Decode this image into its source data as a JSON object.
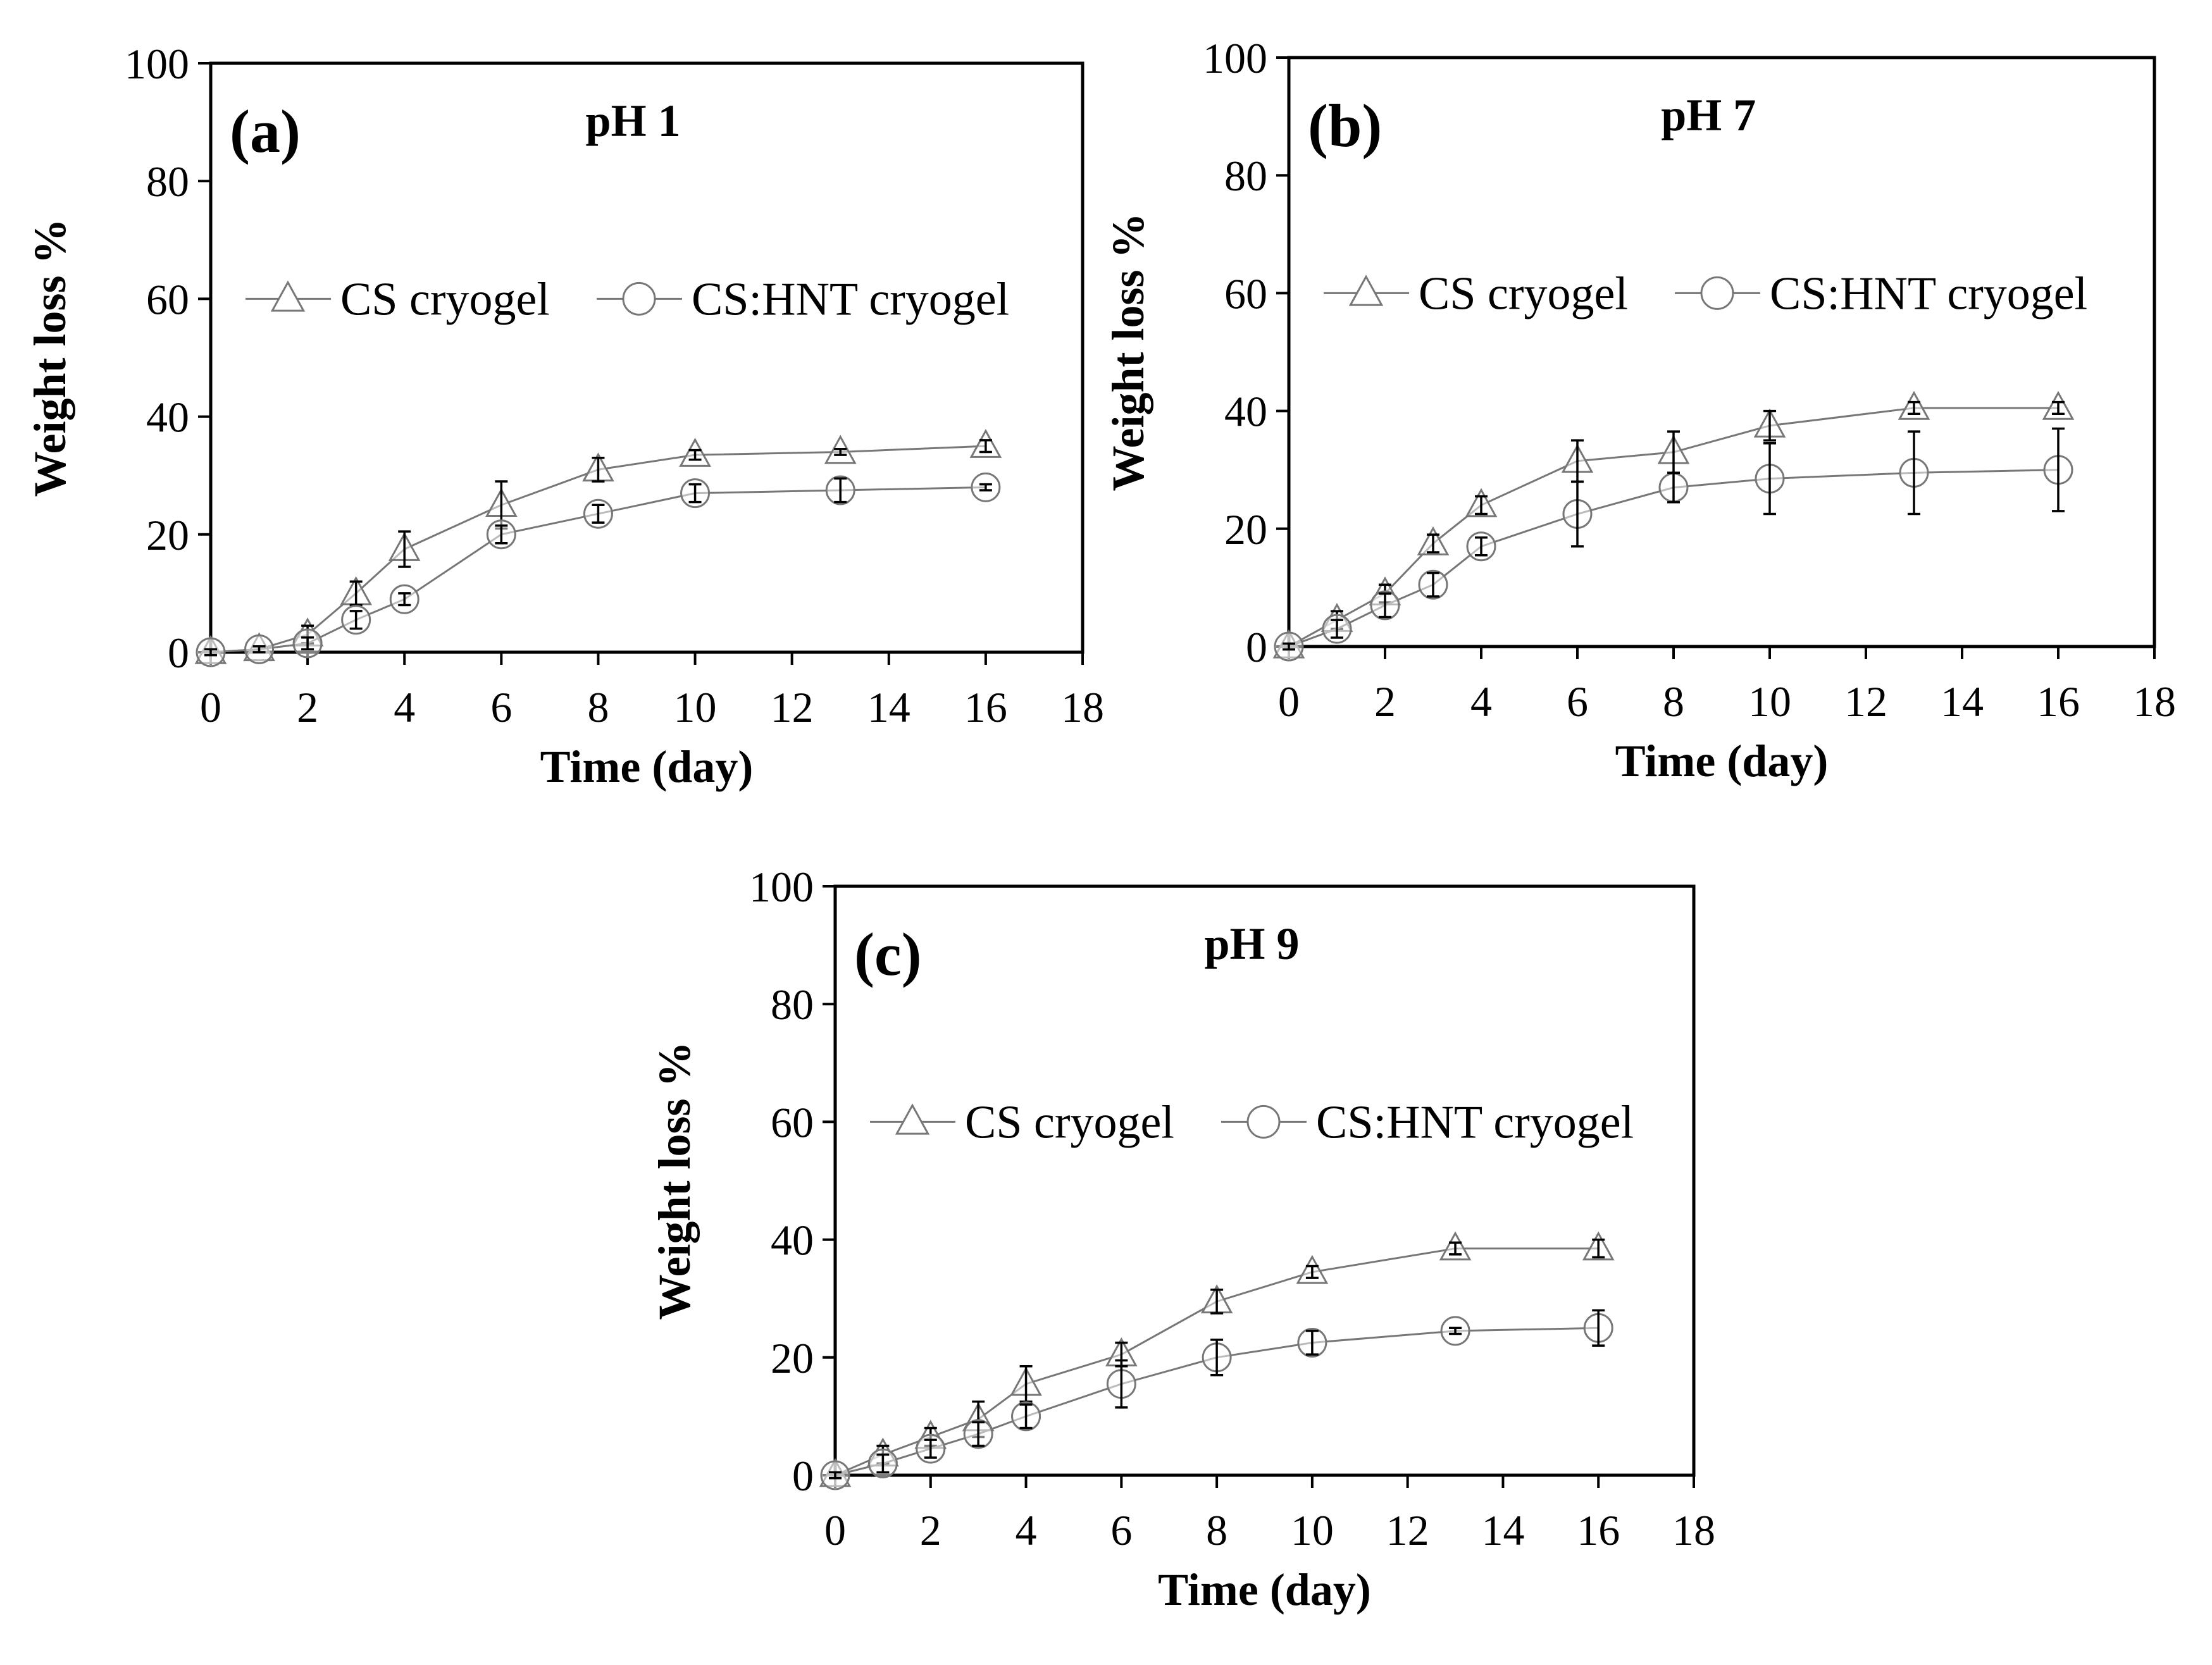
{
  "chart_data": [
    {
      "type": "line",
      "panel_label": "(a)",
      "title": "pH 1",
      "xlabel": "Time (day)",
      "ylabel": "Weight loss %",
      "xlim": [
        0,
        18
      ],
      "ylim": [
        0,
        100
      ],
      "xticks": [
        "0",
        "2",
        "4",
        "6",
        "8",
        "10",
        "12",
        "14",
        "16",
        "18"
      ],
      "yticks": [
        "0",
        "20",
        "40",
        "60",
        "80",
        "100"
      ],
      "grid": false,
      "legend_position": "upper-middle",
      "series": [
        {
          "name": "CS cryogel",
          "marker": "triangle",
          "x": [
            0,
            1,
            2,
            3,
            4,
            6,
            8,
            10,
            13,
            16
          ],
          "y": [
            0,
            0.5,
            3,
            10,
            17.5,
            25,
            31,
            33.5,
            34,
            35
          ],
          "err": [
            0.5,
            0.5,
            1.5,
            2,
            3,
            4,
            2,
            0.8,
            0.5,
            1
          ]
        },
        {
          "name": "CS:HNT cryogel",
          "marker": "circle",
          "x": [
            0,
            1,
            2,
            3,
            4,
            6,
            8,
            10,
            13,
            16
          ],
          "y": [
            0,
            0.5,
            1.5,
            5.5,
            9,
            20,
            23.5,
            27,
            27.5,
            28
          ],
          "err": [
            0.5,
            0.5,
            1,
            1.5,
            1,
            1.5,
            1.5,
            1.5,
            2,
            0.5
          ]
        }
      ]
    },
    {
      "type": "line",
      "panel_label": "(b)",
      "title": "pH 7",
      "xlabel": "Time (day)",
      "ylabel": "Weight loss %",
      "xlim": [
        0,
        18
      ],
      "ylim": [
        0,
        100
      ],
      "xticks": [
        "0",
        "2",
        "4",
        "6",
        "8",
        "10",
        "12",
        "14",
        "16",
        "18"
      ],
      "yticks": [
        "0",
        "20",
        "40",
        "60",
        "80",
        "100"
      ],
      "grid": false,
      "legend_position": "upper-middle",
      "series": [
        {
          "name": "CS cryogel",
          "marker": "triangle",
          "x": [
            0,
            1,
            2,
            3,
            4,
            6,
            8,
            10,
            13,
            16
          ],
          "y": [
            0,
            4.5,
            9,
            17.5,
            24,
            31.5,
            33,
            37.5,
            40.5,
            40.5
          ],
          "err": [
            0.5,
            1.5,
            1.5,
            1.5,
            1.5,
            3.5,
            3.5,
            2.5,
            1,
            1
          ]
        },
        {
          "name": "CS:HNT cryogel",
          "marker": "circle",
          "x": [
            0,
            1,
            2,
            3,
            4,
            6,
            8,
            10,
            13,
            16
          ],
          "y": [
            0,
            3,
            7,
            10.5,
            17,
            22.5,
            27,
            28.5,
            29.5,
            30
          ],
          "err": [
            0.5,
            1.5,
            2,
            2,
            1.5,
            5.5,
            2.5,
            6,
            7,
            7
          ]
        }
      ]
    },
    {
      "type": "line",
      "panel_label": "(c)",
      "title": "pH 9",
      "xlabel": "Time (day)",
      "ylabel": "Weight loss %",
      "xlim": [
        0,
        18
      ],
      "ylim": [
        0,
        100
      ],
      "xticks": [
        "0",
        "2",
        "4",
        "6",
        "8",
        "10",
        "12",
        "14",
        "16",
        "18"
      ],
      "yticks": [
        "0",
        "20",
        "40",
        "60",
        "80",
        "100"
      ],
      "grid": false,
      "legend_position": "upper-middle",
      "series": [
        {
          "name": "CS cryogel",
          "marker": "triangle",
          "x": [
            0,
            1,
            2,
            3,
            4,
            6,
            8,
            10,
            13,
            16
          ],
          "y": [
            0,
            3.5,
            6.5,
            9.5,
            15.5,
            20.5,
            29.5,
            34.5,
            38.5,
            38.5
          ],
          "err": [
            0.5,
            1.5,
            1.5,
            3,
            3,
            2,
            2,
            1,
            1,
            1.5
          ]
        },
        {
          "name": "CS:HNT cryogel",
          "marker": "circle",
          "x": [
            0,
            1,
            2,
            3,
            4,
            6,
            8,
            10,
            13,
            16
          ],
          "y": [
            0,
            2,
            4.5,
            7,
            10,
            15.5,
            20,
            22.5,
            24.5,
            25
          ],
          "err": [
            0.5,
            1.5,
            1.5,
            2,
            2,
            4,
            3,
            2,
            0.5,
            3
          ]
        }
      ]
    }
  ]
}
